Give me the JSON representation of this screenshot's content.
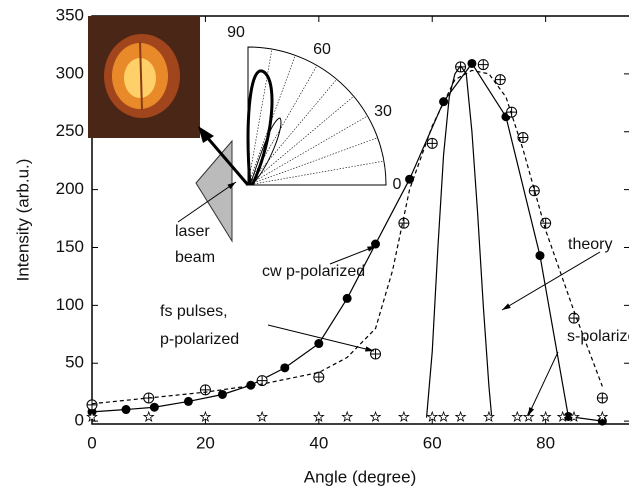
{
  "chart_data": {
    "type": "line",
    "xlabel": "Angle (degree)",
    "ylabel": "Intensity (arb.u.)",
    "xlim": [
      0,
      94.7
    ],
    "ylim": [
      -2.5,
      350
    ],
    "xticks": [
      0,
      20,
      40,
      60,
      80
    ],
    "yticks": [
      0,
      50,
      100,
      150,
      200,
      250,
      300,
      350
    ],
    "series": [
      {
        "name": "cw p-polarized",
        "color": "#000000",
        "marker": "filled-circle",
        "line": "solid",
        "x": [
          0,
          6,
          11,
          17,
          23,
          28,
          34,
          40,
          45,
          50,
          56,
          62,
          67,
          73,
          79,
          84,
          90
        ],
        "values": [
          8,
          10,
          12,
          17,
          23,
          31,
          46,
          67,
          106,
          153,
          209,
          276,
          309,
          263,
          143,
          4,
          0
        ]
      },
      {
        "name": "fs pulses, p-polarized",
        "color": "#000000",
        "marker": "crossed-circle",
        "line": "none",
        "x": [
          0,
          10,
          20,
          30,
          40,
          50,
          55,
          60,
          65,
          69,
          72,
          74,
          76,
          78,
          80,
          85,
          90
        ],
        "values": [
          14,
          20,
          27,
          35,
          38,
          58,
          171,
          240,
          306,
          308,
          295,
          267,
          245,
          199,
          171,
          89,
          20
        ]
      },
      {
        "color": "#000000",
        "marker": "none",
        "line": "dashed",
        "x": [
          0,
          10,
          20,
          30,
          40,
          45,
          50,
          53,
          56,
          60,
          64,
          67,
          70,
          73,
          76,
          80,
          85,
          90
        ],
        "values": [
          15,
          20,
          25,
          32,
          42,
          55,
          80,
          130,
          200,
          255,
          295,
          303,
          300,
          280,
          235,
          165,
          95,
          30
        ]
      },
      {
        "name": "theory",
        "color": "#000000",
        "marker": "none",
        "line": "solid",
        "x": [
          59,
          60,
          61,
          62,
          63,
          64,
          65,
          66,
          67,
          68,
          69,
          70,
          70.5
        ],
        "values": [
          3,
          60,
          150,
          230,
          280,
          300,
          307,
          300,
          250,
          180,
          100,
          30,
          3
        ]
      },
      {
        "name": "s-polarized",
        "color": "#000000",
        "marker": "star",
        "line": "none",
        "x": [
          0,
          10,
          20,
          30,
          40,
          45,
          50,
          55,
          60,
          62,
          65,
          70,
          75,
          77,
          80,
          83,
          85,
          90
        ],
        "values": [
          1,
          1,
          1,
          1,
          1,
          1,
          1,
          1,
          1,
          1,
          1,
          1,
          1,
          1,
          1,
          1,
          1,
          1
        ]
      }
    ],
    "annotations": [
      {
        "lines": [
          "cw p-polarized"
        ]
      },
      {
        "lines": [
          "fs pulses,",
          "p-polarized"
        ]
      },
      {
        "lines": [
          "theory"
        ]
      },
      {
        "lines": [
          "s-polarized"
        ]
      },
      {
        "lines": [
          "laser",
          "beam"
        ]
      }
    ],
    "inset_labels": [
      "90",
      "60",
      "30",
      "0"
    ]
  }
}
